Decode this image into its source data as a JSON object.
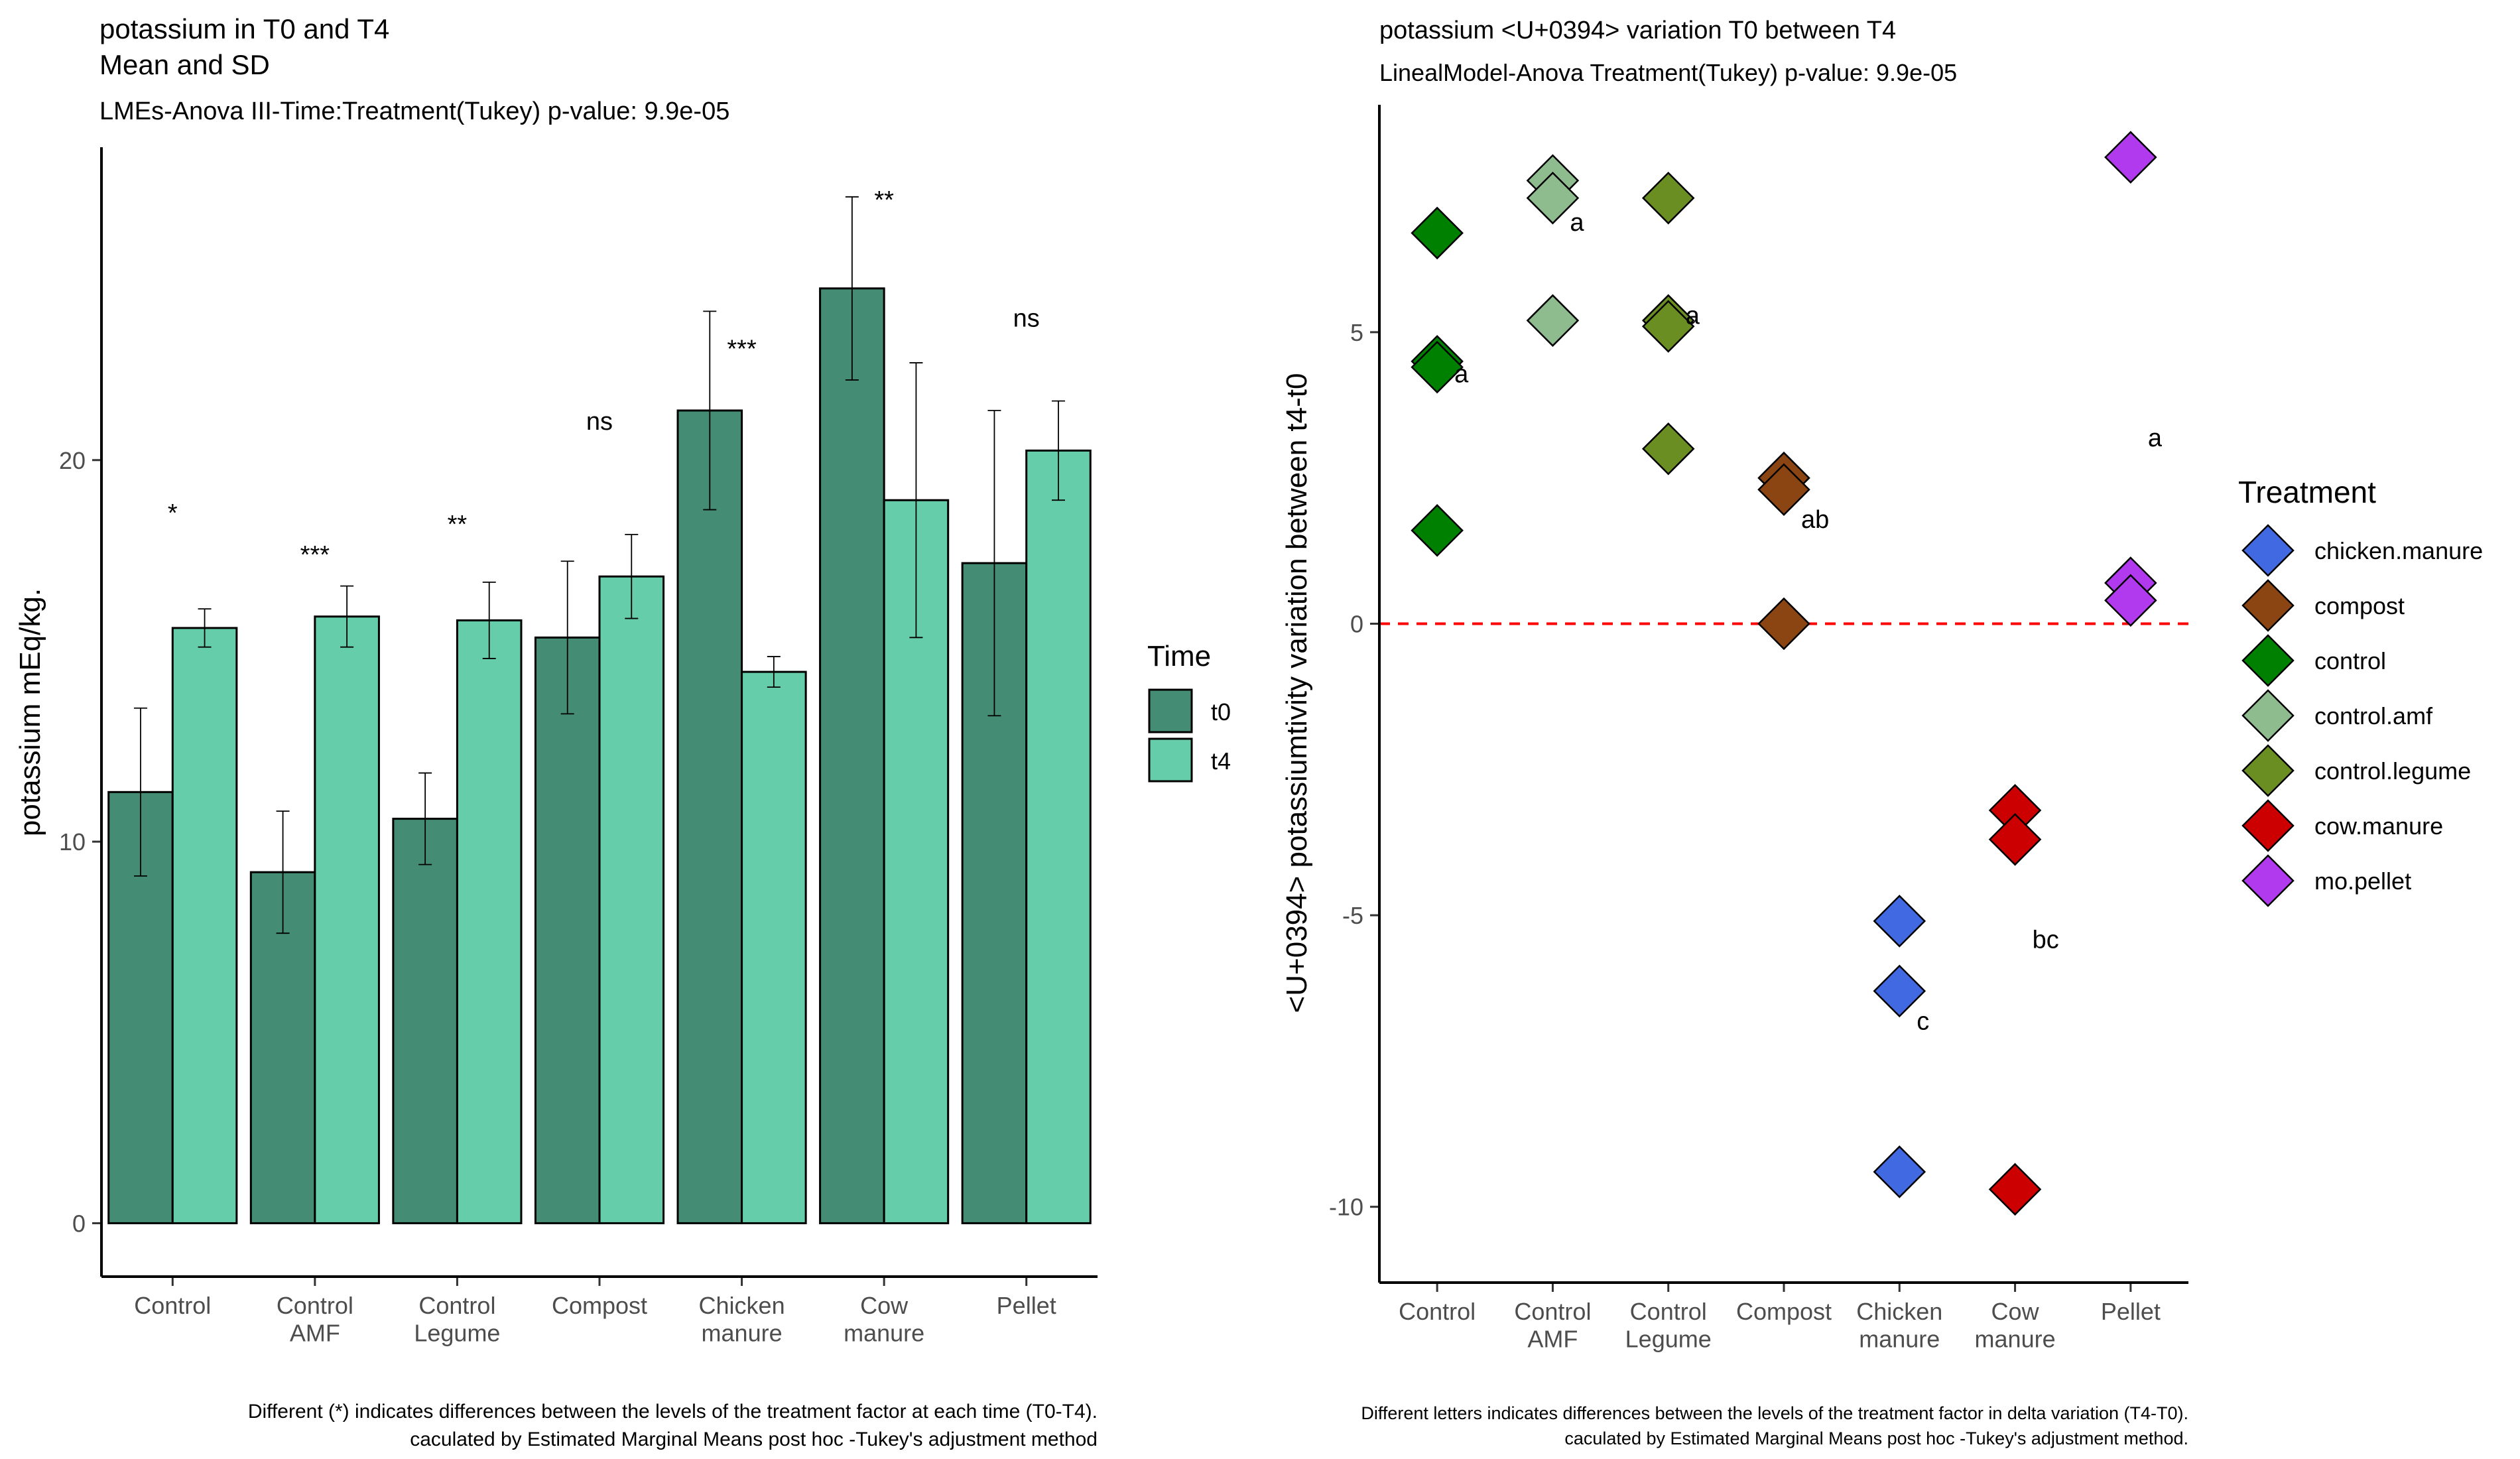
{
  "chart_data": [
    {
      "type": "bar",
      "title": "potassium in T0 and T4",
      "title_line2": "Mean and SD",
      "subtitle": "LMEs-Anova III-Time:Treatment(Tukey) p-value: 9.9e-05",
      "ylabel": "potassium mEq/kg.",
      "xlabel": "",
      "ylim": [
        -1.4,
        28.2
      ],
      "y_ticks": [
        0,
        10,
        20
      ],
      "y_tick_labels": [
        "0",
        "10",
        "20"
      ],
      "categories": [
        "Control",
        "Control\nAMF",
        "Control\nLegume",
        "Compost",
        "Chicken\nmanure",
        "Cow\nmanure",
        "Pellet"
      ],
      "series": [
        {
          "name": "t0",
          "color": "#448c74",
          "values": [
            11.3,
            9.2,
            10.6,
            15.35,
            21.3,
            24.5,
            17.3
          ],
          "sd": [
            2.2,
            1.6,
            1.2,
            2.0,
            2.6,
            2.4,
            4.0
          ]
        },
        {
          "name": "t4",
          "color": "#66cdaa",
          "values": [
            15.6,
            15.9,
            15.8,
            16.95,
            14.45,
            18.95,
            20.25
          ],
          "sd": [
            0.5,
            0.8,
            1.0,
            1.1,
            0.4,
            3.6,
            1.3
          ]
        }
      ],
      "significance": [
        "*",
        "***",
        "**",
        "ns",
        "***",
        "**",
        "ns"
      ],
      "sig_y": [
        18.4,
        17.3,
        18.1,
        20.8,
        22.7,
        26.6,
        23.5
      ],
      "legend": {
        "title": "Time",
        "position": "right",
        "items": [
          "t0",
          "t4"
        ]
      },
      "grid": false,
      "caption_line1": "Different (*) indicates differences between the levels of the treatment factor at each time (T0-T4).",
      "caption_line2": "caculated by Estimated Marginal Means post hoc -Tukey's adjustment method"
    },
    {
      "type": "scatter",
      "title": "potassium <U+0394> variation T0 between T4",
      "subtitle": "LinealModel-Anova Treatment(Tukey) p-value: 9.9e-05",
      "ylabel": "<U+0394> potassiumtivity variation between t4-t0",
      "xlabel": "",
      "ylim": [
        -11.3,
        8.9
      ],
      "y_ticks": [
        -10,
        -5,
        0,
        5
      ],
      "y_tick_labels": [
        "-10",
        "-5",
        "0",
        "5"
      ],
      "categories": [
        "Control",
        "Control\nAMF",
        "Control\nLegume",
        "Compost",
        "Chicken\nmanure",
        "Cow\nmanure",
        "Pellet"
      ],
      "reference_line": {
        "y": 0,
        "color": "#ff0000",
        "style": "dashed"
      },
      "series": [
        {
          "name": "control",
          "category": "Control",
          "color": "#008000",
          "values": [
            6.7,
            4.5,
            4.4,
            1.6
          ]
        },
        {
          "name": "control.amf",
          "category": "Control\nAMF",
          "color": "#8fbc8f",
          "values": [
            7.6,
            7.3,
            5.2
          ]
        },
        {
          "name": "control.legume",
          "category": "Control\nLegume",
          "color": "#6b8e23",
          "values": [
            7.3,
            5.2,
            5.1,
            3.0
          ]
        },
        {
          "name": "compost",
          "category": "Compost",
          "color": "#8b4513",
          "values": [
            2.5,
            2.3,
            0.0
          ]
        },
        {
          "name": "chicken.manure",
          "category": "Chicken\nmanure",
          "color": "#4169e1",
          "values": [
            -5.1,
            -6.3,
            -9.4
          ]
        },
        {
          "name": "cow.manure",
          "category": "Cow\nmanure",
          "color": "#cc0000",
          "values": [
            -3.2,
            -3.7,
            -9.7
          ]
        },
        {
          "name": "mo.pellet",
          "category": "Pellet",
          "color": "#b23aee",
          "values": [
            8.0,
            0.7,
            0.4
          ]
        }
      ],
      "letters": [
        {
          "category": "Control",
          "label": "a",
          "y": 4.3
        },
        {
          "category": "Control\nAMF",
          "label": "a",
          "y": 6.9
        },
        {
          "category": "Control\nLegume",
          "label": "a",
          "y": 5.3
        },
        {
          "category": "Compost",
          "label": "ab",
          "y": 1.8
        },
        {
          "category": "Chicken\nmanure",
          "label": "c",
          "y": -6.8
        },
        {
          "category": "Cow\nmanure",
          "label": "bc",
          "y": -5.4
        },
        {
          "category": "Pellet",
          "label": "a",
          "y": 3.2
        }
      ],
      "legend": {
        "title": "Treatment",
        "position": "right",
        "items": [
          "chicken.manure",
          "compost",
          "control",
          "control.amf",
          "control.legume",
          "cow.manure",
          "mo.pellet"
        ]
      },
      "grid": false,
      "caption_line1": "Different letters indicates differences between the levels of the treatment factor in delta variation (T4-T0).",
      "caption_line2": "caculated by Estimated Marginal Means post hoc -Tukey's adjustment method."
    }
  ]
}
